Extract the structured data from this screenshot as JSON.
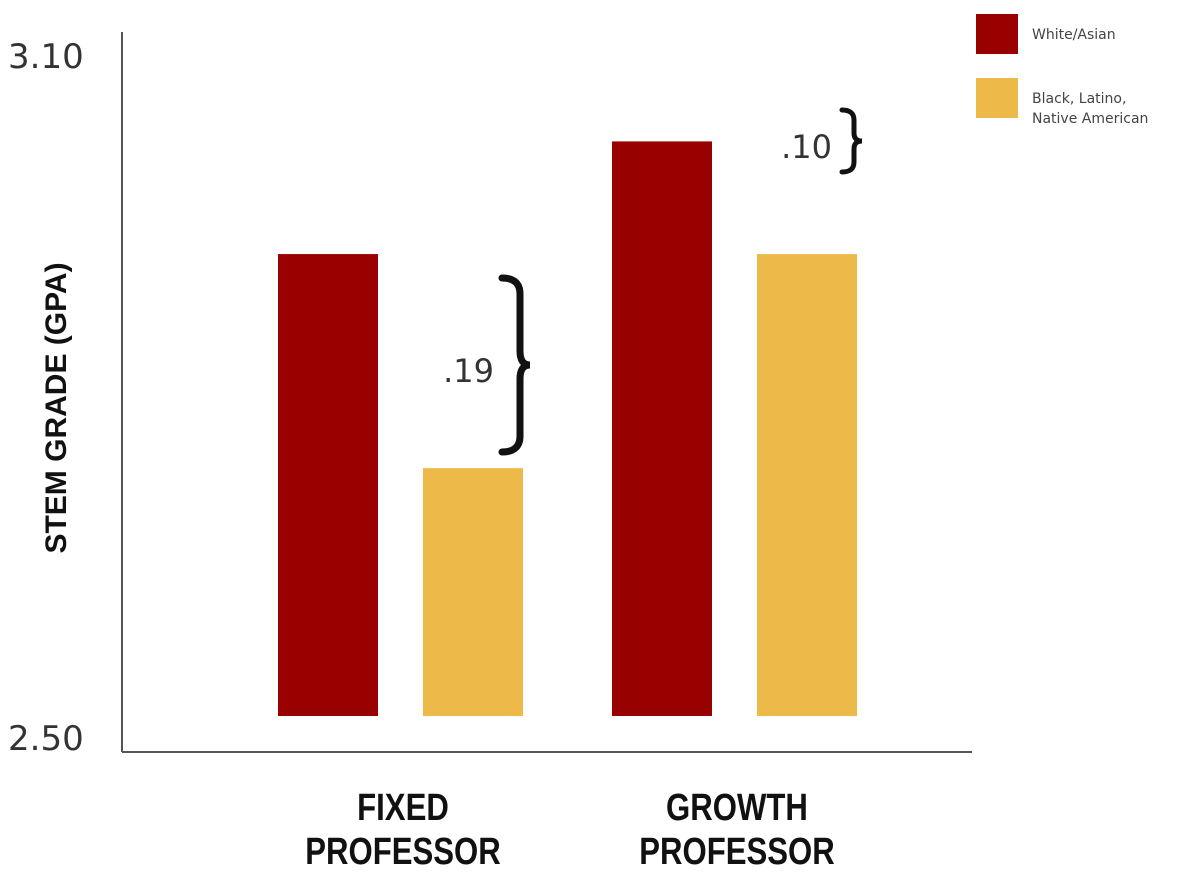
{
  "chart_data": {
    "type": "bar",
    "categories": [
      [
        "FIXED",
        "PROFESSOR"
      ],
      [
        "GROWTH",
        "PROFESSOR"
      ]
    ],
    "series": [
      {
        "name": "White/Asian",
        "color": "#990000",
        "values": [
          2.91,
          3.01
        ]
      },
      {
        "name": [
          "Black, Latino,",
          "Native American"
        ],
        "color": "#EDBA4A",
        "values": [
          2.72,
          2.91
        ]
      }
    ],
    "ylabel": "STEM GRADE (GPA)",
    "ylim": [
      2.5,
      3.1
    ],
    "y_ticks": [
      "3.10",
      "2.50"
    ],
    "annotations": [
      {
        "text": ".19",
        "category": 0
      },
      {
        "text": ".10",
        "category": 1
      }
    ],
    "legend_position": "top-right",
    "grid": false
  }
}
